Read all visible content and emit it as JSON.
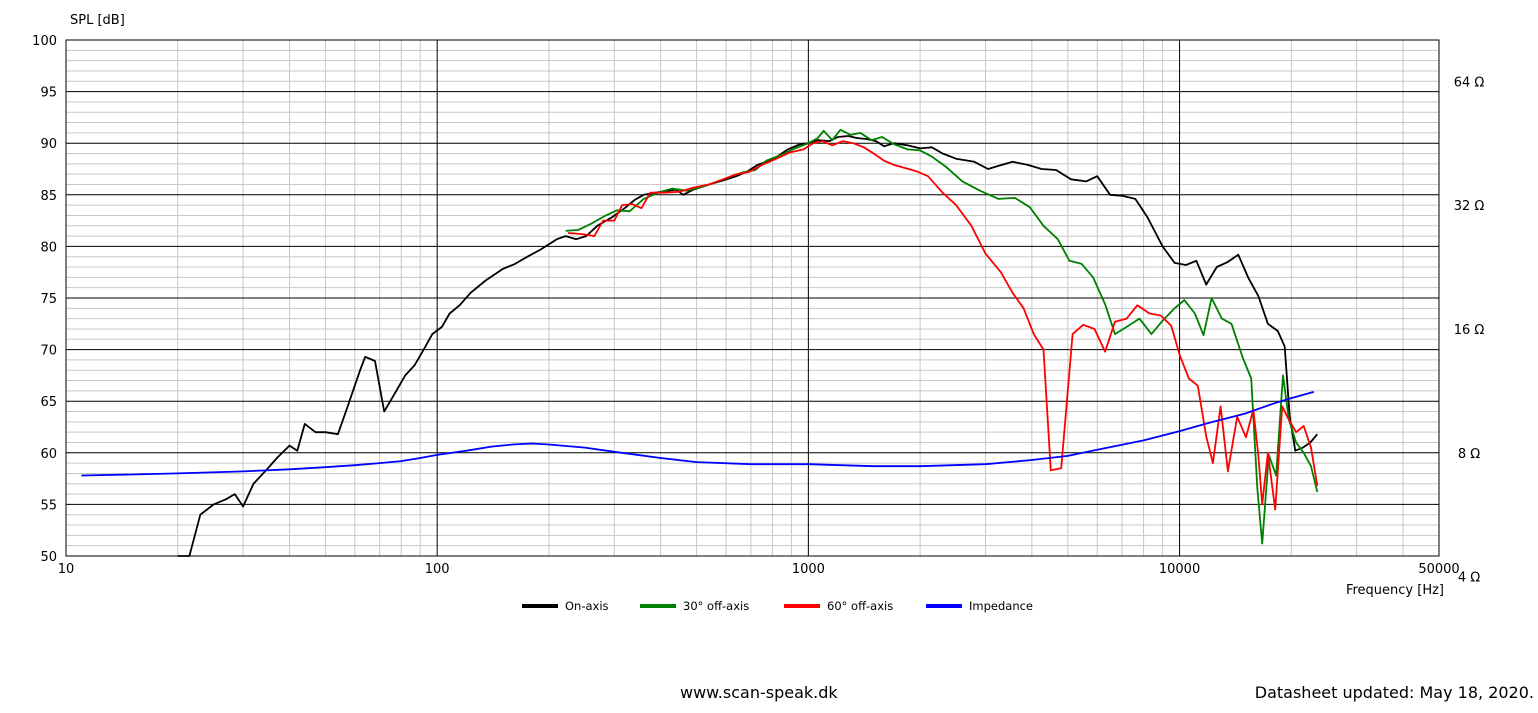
{
  "chart_data": {
    "type": "line",
    "ylabel": "SPL [dB]",
    "xlabel": "Frequency [Hz]",
    "xscale": "log",
    "xlim": [
      10,
      50000
    ],
    "ylim": [
      50,
      100
    ],
    "x_ticks": [
      {
        "value": 10,
        "label": "10"
      },
      {
        "value": 100,
        "label": "100"
      },
      {
        "value": 1000,
        "label": "1000"
      },
      {
        "value": 10000,
        "label": "10000"
      },
      {
        "value": 50000,
        "label": "50000"
      }
    ],
    "y_ticks": [
      50,
      55,
      60,
      65,
      70,
      75,
      80,
      85,
      90,
      95,
      100
    ],
    "secondary_y": {
      "scale": "log",
      "ticks": [
        {
          "value": 4,
          "label": "4 Ω"
        },
        {
          "value": 8,
          "label": "8 Ω"
        },
        {
          "value": 16,
          "label": "16 Ω"
        },
        {
          "value": 32,
          "label": "32 Ω"
        },
        {
          "value": 64,
          "label": "64 Ω"
        }
      ]
    },
    "grid": true,
    "legend_position": "bottom",
    "series": [
      {
        "name": "On-axis",
        "color": "#000000",
        "points": [
          [
            20,
            50
          ],
          [
            21.5,
            50
          ],
          [
            23,
            54
          ],
          [
            25,
            55
          ],
          [
            27,
            55.5
          ],
          [
            28.5,
            56
          ],
          [
            30,
            54.8
          ],
          [
            32,
            57
          ],
          [
            35,
            58.5
          ],
          [
            37,
            59.5
          ],
          [
            40,
            60.7
          ],
          [
            42,
            60.2
          ],
          [
            44,
            62.8
          ],
          [
            47,
            62
          ],
          [
            50,
            62
          ],
          [
            54,
            61.8
          ],
          [
            57,
            64.2
          ],
          [
            62,
            68
          ],
          [
            64,
            69.3
          ],
          [
            68,
            68.9
          ],
          [
            72,
            64
          ],
          [
            77,
            65.8
          ],
          [
            82,
            67.5
          ],
          [
            87,
            68.5
          ],
          [
            92,
            70
          ],
          [
            97,
            71.5
          ],
          [
            103,
            72.2
          ],
          [
            108,
            73.5
          ],
          [
            115,
            74.3
          ],
          [
            123,
            75.5
          ],
          [
            135,
            76.7
          ],
          [
            150,
            77.8
          ],
          [
            162,
            78.3
          ],
          [
            175,
            79
          ],
          [
            190,
            79.7
          ],
          [
            210,
            80.7
          ],
          [
            222,
            81
          ],
          [
            237,
            80.7
          ],
          [
            252,
            81
          ],
          [
            270,
            82
          ],
          [
            295,
            82.8
          ],
          [
            320,
            83.7
          ],
          [
            340,
            84.5
          ],
          [
            360,
            85
          ],
          [
            400,
            85.3
          ],
          [
            440,
            85.5
          ],
          [
            460,
            85
          ],
          [
            490,
            85.5
          ],
          [
            540,
            86
          ],
          [
            590,
            86.4
          ],
          [
            640,
            86.8
          ],
          [
            680,
            87.2
          ],
          [
            730,
            87.9
          ],
          [
            800,
            88.4
          ],
          [
            880,
            89.4
          ],
          [
            950,
            89.9
          ],
          [
            1000,
            90
          ],
          [
            1060,
            90.3
          ],
          [
            1140,
            90.2
          ],
          [
            1200,
            90.6
          ],
          [
            1280,
            90.7
          ],
          [
            1350,
            90.5
          ],
          [
            1440,
            90.4
          ],
          [
            1520,
            90.2
          ],
          [
            1600,
            89.7
          ],
          [
            1700,
            90
          ],
          [
            1850,
            89.8
          ],
          [
            2000,
            89.5
          ],
          [
            2150,
            89.6
          ],
          [
            2300,
            89
          ],
          [
            2500,
            88.5
          ],
          [
            2800,
            88.2
          ],
          [
            3050,
            87.5
          ],
          [
            3250,
            87.8
          ],
          [
            3550,
            88.2
          ],
          [
            3900,
            87.9
          ],
          [
            4250,
            87.5
          ],
          [
            4650,
            87.4
          ],
          [
            5100,
            86.5
          ],
          [
            5600,
            86.3
          ],
          [
            6000,
            86.8
          ],
          [
            6500,
            85
          ],
          [
            7000,
            84.9
          ],
          [
            7600,
            84.6
          ],
          [
            8200,
            82.8
          ],
          [
            9000,
            80
          ],
          [
            9700,
            78.4
          ],
          [
            10400,
            78.2
          ],
          [
            11100,
            78.6
          ],
          [
            11800,
            76.3
          ],
          [
            12600,
            78
          ],
          [
            13500,
            78.5
          ],
          [
            14400,
            79.2
          ],
          [
            15300,
            77
          ],
          [
            16300,
            75.2
          ],
          [
            17300,
            72.5
          ],
          [
            18400,
            71.8
          ],
          [
            19200,
            70.3
          ],
          [
            19800,
            63.5
          ],
          [
            20500,
            60.2
          ],
          [
            21500,
            60.5
          ],
          [
            22500,
            61
          ],
          [
            23500,
            61.8
          ]
        ]
      },
      {
        "name": "30° off-axis",
        "color": "#008000",
        "points": [
          [
            222,
            81.5
          ],
          [
            240,
            81.6
          ],
          [
            260,
            82.2
          ],
          [
            285,
            83
          ],
          [
            305,
            83.5
          ],
          [
            330,
            83.4
          ],
          [
            360,
            84.6
          ],
          [
            400,
            85.3
          ],
          [
            430,
            85.6
          ],
          [
            470,
            85.4
          ],
          [
            520,
            85.8
          ],
          [
            570,
            86.3
          ],
          [
            620,
            86.8
          ],
          [
            670,
            87.2
          ],
          [
            720,
            87.4
          ],
          [
            770,
            88.3
          ],
          [
            850,
            88.9
          ],
          [
            920,
            89.5
          ],
          [
            1000,
            90
          ],
          [
            1060,
            90.5
          ],
          [
            1100,
            91.2
          ],
          [
            1160,
            90.3
          ],
          [
            1220,
            91.3
          ],
          [
            1300,
            90.8
          ],
          [
            1380,
            91
          ],
          [
            1480,
            90.3
          ],
          [
            1580,
            90.6
          ],
          [
            1700,
            89.9
          ],
          [
            1850,
            89.4
          ],
          [
            2000,
            89.3
          ],
          [
            2150,
            88.7
          ],
          [
            2350,
            87.7
          ],
          [
            2600,
            86.3
          ],
          [
            2900,
            85.4
          ],
          [
            3250,
            84.6
          ],
          [
            3600,
            84.7
          ],
          [
            3950,
            83.8
          ],
          [
            4300,
            82
          ],
          [
            4700,
            80.7
          ],
          [
            5050,
            78.6
          ],
          [
            5450,
            78.3
          ],
          [
            5850,
            77
          ],
          [
            6300,
            74.4
          ],
          [
            6700,
            71.5
          ],
          [
            7200,
            72.2
          ],
          [
            7800,
            73
          ],
          [
            8400,
            71.5
          ],
          [
            9000,
            72.8
          ],
          [
            9700,
            74
          ],
          [
            10300,
            74.8
          ],
          [
            11000,
            73.5
          ],
          [
            11600,
            71.4
          ],
          [
            12200,
            75
          ],
          [
            13000,
            73
          ],
          [
            13800,
            72.5
          ],
          [
            14800,
            69.2
          ],
          [
            15600,
            67.2
          ],
          [
            16200,
            56.6
          ],
          [
            16700,
            51.2
          ],
          [
            17400,
            59.8
          ],
          [
            18200,
            57.8
          ],
          [
            19000,
            67.5
          ],
          [
            19700,
            63.2
          ],
          [
            20600,
            61
          ],
          [
            21600,
            60
          ],
          [
            22600,
            58.7
          ],
          [
            23500,
            56.2
          ]
        ]
      },
      {
        "name": "60° off-axis",
        "color": "#ff0000",
        "points": [
          [
            225,
            81.3
          ],
          [
            245,
            81.2
          ],
          [
            265,
            81
          ],
          [
            280,
            82.5
          ],
          [
            300,
            82.5
          ],
          [
            315,
            84
          ],
          [
            335,
            84.1
          ],
          [
            355,
            83.7
          ],
          [
            375,
            85.2
          ],
          [
            410,
            85.2
          ],
          [
            450,
            85.3
          ],
          [
            490,
            85.7
          ],
          [
            540,
            86
          ],
          [
            590,
            86.5
          ],
          [
            640,
            87
          ],
          [
            690,
            87.2
          ],
          [
            750,
            87.9
          ],
          [
            820,
            88.5
          ],
          [
            890,
            89.1
          ],
          [
            970,
            89.4
          ],
          [
            1030,
            90
          ],
          [
            1090,
            90.2
          ],
          [
            1160,
            89.8
          ],
          [
            1240,
            90.2
          ],
          [
            1320,
            90
          ],
          [
            1410,
            89.6
          ],
          [
            1500,
            89
          ],
          [
            1600,
            88.3
          ],
          [
            1700,
            87.9
          ],
          [
            1820,
            87.6
          ],
          [
            1950,
            87.3
          ],
          [
            2100,
            86.8
          ],
          [
            2300,
            85.2
          ],
          [
            2500,
            84
          ],
          [
            2750,
            82
          ],
          [
            3000,
            79.3
          ],
          [
            3300,
            77.5
          ],
          [
            3550,
            75.5
          ],
          [
            3800,
            74
          ],
          [
            4050,
            71.5
          ],
          [
            4300,
            70
          ],
          [
            4500,
            58.3
          ],
          [
            4800,
            58.5
          ],
          [
            5150,
            71.5
          ],
          [
            5500,
            72.4
          ],
          [
            5900,
            72
          ],
          [
            6300,
            69.8
          ],
          [
            6700,
            72.7
          ],
          [
            7200,
            73
          ],
          [
            7700,
            74.3
          ],
          [
            8300,
            73.5
          ],
          [
            8900,
            73.3
          ],
          [
            9500,
            72.3
          ],
          [
            10000,
            69.5
          ],
          [
            10600,
            67.2
          ],
          [
            11200,
            66.5
          ],
          [
            11800,
            61.6
          ],
          [
            12300,
            59
          ],
          [
            12900,
            64.5
          ],
          [
            13500,
            58.2
          ],
          [
            14300,
            63.5
          ],
          [
            15100,
            61.5
          ],
          [
            15800,
            64.2
          ],
          [
            16300,
            59.8
          ],
          [
            16700,
            55
          ],
          [
            17300,
            60
          ],
          [
            18100,
            54.5
          ],
          [
            18900,
            64.5
          ],
          [
            19700,
            63.2
          ],
          [
            20600,
            62
          ],
          [
            21600,
            62.6
          ],
          [
            22600,
            60.5
          ],
          [
            23500,
            56.8
          ]
        ]
      },
      {
        "name": "Impedance",
        "color": "#0000ff",
        "points": [
          [
            11,
            57.8
          ],
          [
            15,
            57.9
          ],
          [
            20,
            58
          ],
          [
            30,
            58.2
          ],
          [
            40,
            58.4
          ],
          [
            50,
            58.6
          ],
          [
            60,
            58.8
          ],
          [
            70,
            59
          ],
          [
            80,
            59.2
          ],
          [
            90,
            59.5
          ],
          [
            100,
            59.8
          ],
          [
            120,
            60.2
          ],
          [
            140,
            60.6
          ],
          [
            160,
            60.8
          ],
          [
            180,
            60.9
          ],
          [
            200,
            60.8
          ],
          [
            250,
            60.5
          ],
          [
            300,
            60.1
          ],
          [
            400,
            59.5
          ],
          [
            500,
            59.1
          ],
          [
            700,
            58.9
          ],
          [
            1000,
            58.9
          ],
          [
            1500,
            58.7
          ],
          [
            2000,
            58.7
          ],
          [
            3000,
            58.9
          ],
          [
            4000,
            59.3
          ],
          [
            5000,
            59.7
          ],
          [
            6000,
            60.3
          ],
          [
            8000,
            61.2
          ],
          [
            10000,
            62.1
          ],
          [
            12000,
            62.9
          ],
          [
            15000,
            63.8
          ],
          [
            18000,
            64.8
          ],
          [
            20000,
            65.3
          ],
          [
            23000,
            65.9
          ]
        ]
      }
    ]
  },
  "footer": {
    "website": "www.scan-speak.dk",
    "updated": "Datasheet updated: May 18, 2020."
  }
}
